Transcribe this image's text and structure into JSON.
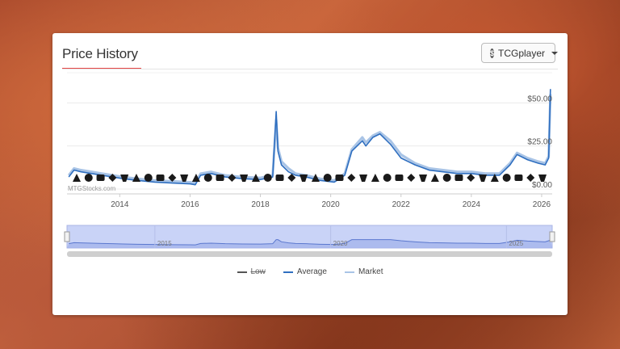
{
  "card": {
    "title": "Price History",
    "source_button": {
      "icon": "coin-icon",
      "icon_glyph": "$",
      "label": "TCGplayer"
    }
  },
  "chart_data": {
    "type": "line",
    "watermark": "MTGStocks.com",
    "x_label": "",
    "y_label": "",
    "x_range": [
      2012.5,
      2026.3
    ],
    "y_range": [
      0,
      60
    ],
    "x_ticks": [
      "2014",
      "2016",
      "2018",
      "2020",
      "2022",
      "2024",
      "2026"
    ],
    "y_ticks": [
      "$0.00",
      "$25.00",
      "$50.00"
    ],
    "grid": true,
    "legend_position": "bottom",
    "colors": {
      "average": "#2f6fc0",
      "market": "#a9c4e6",
      "low": "#555555",
      "navigator": "#c9d3f7"
    },
    "series": [
      {
        "name": "Average",
        "x": [
          2012.55,
          2012.7,
          2012.9,
          2013.2,
          2013.5,
          2013.8,
          2014.1,
          2014.5,
          2015.0,
          2015.5,
          2016.0,
          2016.15,
          2016.3,
          2016.6,
          2017.0,
          2017.5,
          2018.0,
          2018.35,
          2018.45,
          2018.5,
          2018.6,
          2018.8,
          2019.0,
          2019.3,
          2019.7,
          2020.1,
          2020.4,
          2020.6,
          2020.9,
          2021.0,
          2021.2,
          2021.4,
          2021.7,
          2022.0,
          2022.4,
          2022.8,
          2023.2,
          2023.6,
          2024.0,
          2024.4,
          2024.8,
          2025.1,
          2025.3,
          2025.6,
          2025.9,
          2026.1,
          2026.2,
          2026.25
        ],
        "y": [
          7,
          11,
          10,
          9,
          8,
          7,
          6,
          5,
          4,
          3.5,
          3,
          2.5,
          8,
          9,
          7,
          6,
          5.5,
          7,
          45,
          22,
          14,
          10,
          8,
          7,
          5,
          4,
          8,
          22,
          28,
          25,
          30,
          32,
          26,
          18,
          14,
          11,
          10,
          9,
          9,
          8,
          8,
          14,
          20,
          17,
          15,
          14,
          18,
          58
        ]
      },
      {
        "name": "Market",
        "x": [
          2012.55,
          2012.7,
          2012.9,
          2013.2,
          2013.5,
          2013.8,
          2014.1,
          2014.5,
          2015.0,
          2015.5,
          2016.0,
          2016.15,
          2016.3,
          2016.6,
          2017.0,
          2017.5,
          2018.0,
          2018.35,
          2018.45,
          2018.5,
          2018.6,
          2018.8,
          2019.0,
          2019.3,
          2019.7,
          2020.1,
          2020.4,
          2020.6,
          2020.9,
          2021.0,
          2021.2,
          2021.4,
          2021.7,
          2022.0,
          2022.4,
          2022.8,
          2023.2,
          2023.6,
          2024.0,
          2024.4,
          2024.8,
          2025.1,
          2025.3,
          2025.6,
          2025.9,
          2026.1,
          2026.2,
          2026.25
        ],
        "y": [
          8,
          12,
          11,
          10,
          9,
          8,
          7,
          6,
          5,
          4.5,
          4,
          3.5,
          9,
          10,
          8,
          7,
          6.5,
          8,
          40,
          24,
          16,
          12,
          9,
          8,
          6,
          5,
          9,
          23,
          30,
          27,
          31,
          33,
          28,
          20,
          15,
          12,
          11,
          10,
          10,
          9,
          9,
          15,
          21,
          18,
          16,
          15,
          19,
          55
        ]
      }
    ],
    "navigator": {
      "labels": [
        "2015",
        "2020",
        "2025"
      ]
    },
    "set_icons": [
      "crown",
      "eye",
      "horns",
      "mask",
      "shield",
      "vortex",
      "m14",
      "wing",
      "helmet",
      "ring",
      "flame",
      "tri",
      "stack",
      "crest",
      "orbit",
      "claw",
      "star",
      "gem",
      "bolt",
      "ori",
      "m19",
      "chain",
      "rune",
      "pick",
      "sphere",
      "hand",
      "sun",
      "leaf",
      "fang",
      "mirror",
      "gear",
      "swirl",
      "spire",
      "cross",
      "wheel",
      "drop",
      "book",
      "wing2",
      "moon",
      "comet"
    ]
  },
  "legend": [
    {
      "key": "low",
      "label": "Low"
    },
    {
      "key": "average",
      "label": "Average"
    },
    {
      "key": "market",
      "label": "Market"
    }
  ]
}
